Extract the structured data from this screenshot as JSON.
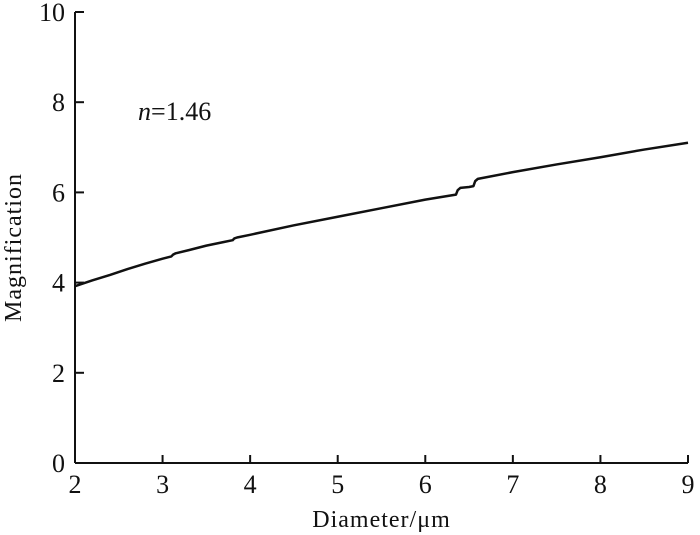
{
  "chart_data": {
    "type": "line",
    "title": "",
    "xlabel": "Diameter/μm",
    "ylabel": "Magnification",
    "xlim": [
      2,
      9
    ],
    "ylim": [
      0,
      10
    ],
    "x_ticks": [
      2,
      3,
      4,
      5,
      6,
      7,
      8,
      9
    ],
    "y_ticks": [
      0,
      2,
      4,
      6,
      8,
      10
    ],
    "grid": false,
    "legend": "none",
    "annotations": [
      {
        "var": "n",
        "text": "=1.46",
        "x": 2.72,
        "y": 7.8
      }
    ],
    "series": [
      {
        "x": [
          2.0,
          2.2,
          2.4,
          2.6,
          2.8,
          3.0,
          3.1,
          3.12,
          3.15,
          3.3,
          3.5,
          3.7,
          3.8,
          3.82,
          3.85,
          4.0,
          4.5,
          5.0,
          5.5,
          6.0,
          6.35,
          6.37,
          6.4,
          6.5,
          6.55,
          6.57,
          6.6,
          7.0,
          7.5,
          8.0,
          8.5,
          9.0
        ],
        "y": [
          3.92,
          4.05,
          4.17,
          4.3,
          4.42,
          4.53,
          4.58,
          4.62,
          4.65,
          4.72,
          4.82,
          4.9,
          4.94,
          4.98,
          5.0,
          5.06,
          5.27,
          5.46,
          5.65,
          5.84,
          5.95,
          6.05,
          6.1,
          6.12,
          6.14,
          6.25,
          6.3,
          6.45,
          6.62,
          6.78,
          6.95,
          7.1
        ]
      }
    ]
  }
}
